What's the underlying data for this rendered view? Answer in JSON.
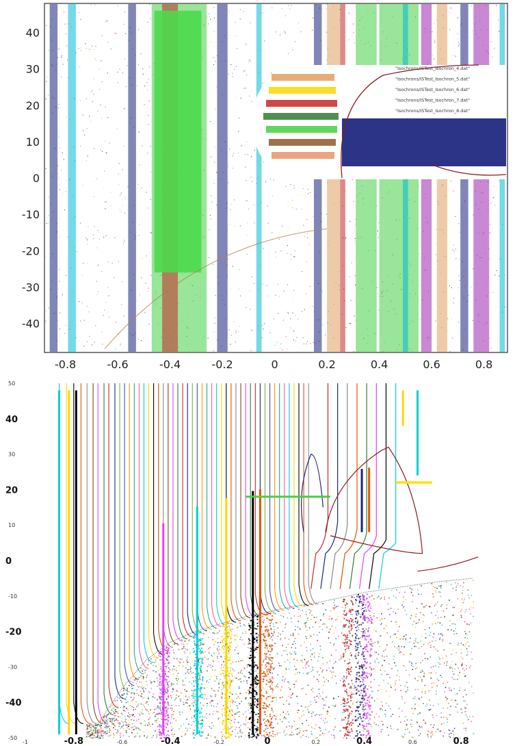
{
  "chart_data": [
    {
      "type": "scatter",
      "title": "",
      "xlabel": "",
      "ylabel": "",
      "xlim": [
        -0.88,
        0.89
      ],
      "ylim": [
        -48,
        48
      ],
      "grid": false,
      "legend_placement": "top-right",
      "x_ticks": [
        "-0.8",
        "-0.6",
        "-0.4",
        "-0.2",
        "0",
        "0.2",
        "0.4",
        "0.6",
        "0.8"
      ],
      "x_tick_values": [
        -0.8,
        -0.6,
        -0.4,
        -0.2,
        0,
        0.2,
        0.4,
        0.6,
        0.8
      ],
      "y_ticks": [
        "40",
        "30",
        "20",
        "10",
        "0",
        "-10",
        "-20",
        "-30",
        "-40"
      ],
      "y_tick_values": [
        40,
        30,
        20,
        10,
        0,
        -10,
        -20,
        -30,
        -40
      ],
      "legend_entries": [
        "\"Isochrons/ISTest_Isochron_4.dat\"",
        "\"Isochrons/ISTest_Isochron_5.dat\"",
        "\"Isochrons/ISTest_Isochron_6.dat\"",
        "\"Isochrons/ISTest_Isochron_7.dat\"",
        "\"Isochrons/ISTest_Isochron_8.dat\""
      ],
      "colors": [
        "#1a237e",
        "#3aa655",
        "#c62828",
        "#e91e63",
        "#00bcd4",
        "#795548",
        "#ffd600",
        "#2e7d32",
        "#ff8a65",
        "#9c27b0",
        "#222222",
        "#5c6bc0",
        "#e0a060",
        "#45d045"
      ],
      "series": [
        {
          "color": "#1a237e",
          "bands": [
            [
              -0.86,
              -0.83
            ],
            [
              -0.56,
              -0.53
            ],
            [
              -0.22,
              -0.18
            ],
            [
              0.15,
              0.18
            ],
            [
              0.71,
              0.74
            ]
          ]
        },
        {
          "color": "#45d045",
          "bands": [
            [
              -0.47,
              -0.26
            ],
            [
              0.31,
              0.39
            ],
            [
              0.4,
              0.55
            ]
          ]
        },
        {
          "color": "#c62828",
          "bands": [
            [
              -0.43,
              -0.37
            ],
            [
              0.25,
              0.27
            ]
          ]
        },
        {
          "color": "#00bcd4",
          "bands": [
            [
              -0.79,
              -0.76
            ],
            [
              -0.07,
              -0.05
            ],
            [
              0.49,
              0.51
            ],
            [
              0.86,
              0.88
            ]
          ]
        },
        {
          "color": "#e0a060",
          "bands": [
            [
              0.2,
              0.25
            ],
            [
              0.62,
              0.66
            ]
          ]
        },
        {
          "color": "#9c27b0",
          "bands": [
            [
              0.56,
              0.6
            ],
            [
              0.76,
              0.82
            ]
          ]
        }
      ]
    },
    {
      "type": "line",
      "title": "",
      "xlabel": "",
      "ylabel": "",
      "xlim": [
        -1,
        1
      ],
      "ylim": [
        -50,
        50
      ],
      "grid": false,
      "x_ticks_major": [
        "-0.8",
        "-0.4",
        "0",
        "0.4",
        "0.8"
      ],
      "x_ticks_major_values": [
        -0.8,
        -0.4,
        0,
        0.4,
        0.8
      ],
      "x_ticks_minor": [
        "-1",
        "-0.6",
        "-0.2",
        "0.2",
        "0.6"
      ],
      "x_ticks_minor_values": [
        -1,
        -0.6,
        -0.2,
        0.2,
        0.6
      ],
      "y_ticks_major": [
        "40",
        "20",
        "0",
        "-20",
        "-40"
      ],
      "y_ticks_major_values": [
        40,
        20,
        0,
        -20,
        -40
      ],
      "y_ticks_minor": [
        "50",
        "30",
        "10",
        "-10",
        "-30",
        "-50"
      ],
      "y_ticks_minor_values": [
        50,
        30,
        10,
        -10,
        -30,
        -50
      ],
      "colors": [
        "#00d0d0",
        "#ffd600",
        "#000000",
        "#e65100",
        "#888888",
        "#8b4513",
        "#e040fb",
        "#2e7d32",
        "#c62828",
        "#1a237e",
        "#7cb342",
        "#3f51b5",
        "#ff9800",
        "#26a69a",
        "#f06292"
      ],
      "isochron_x": [
        -0.86,
        -0.83,
        -0.8,
        -0.77,
        -0.745,
        -0.72,
        -0.7,
        -0.675,
        -0.655,
        -0.63,
        -0.61,
        -0.59,
        -0.57,
        -0.55,
        -0.53,
        -0.51,
        -0.49,
        -0.47,
        -0.45,
        -0.43,
        -0.41,
        -0.39,
        -0.37,
        -0.35,
        -0.33,
        -0.31,
        -0.29,
        -0.27,
        -0.25,
        -0.23,
        -0.21,
        -0.19,
        -0.17,
        -0.15,
        -0.13,
        -0.11,
        -0.09,
        -0.07,
        -0.05,
        -0.03,
        -0.01,
        0.01,
        0.03,
        0.05,
        0.07,
        0.09,
        0.11,
        0.13,
        0.15,
        0.17
      ],
      "bold_isochrons": [
        {
          "x": -0.86,
          "color": "#00d0d0"
        },
        {
          "x": -0.82,
          "color": "#ffd600"
        },
        {
          "x": -0.79,
          "color": "#000000"
        },
        {
          "x": -0.43,
          "color": "#e040fb"
        },
        {
          "x": -0.29,
          "color": "#00d0d0"
        },
        {
          "x": -0.17,
          "color": "#ffd600"
        },
        {
          "x": -0.06,
          "color": "#000000"
        },
        {
          "x": -0.03,
          "color": "#e65100"
        },
        {
          "x": 0.39,
          "color": "#1a237e"
        },
        {
          "x": 0.42,
          "color": "#e65100"
        }
      ],
      "boundary_curve": [
        [
          -0.7,
          -46
        ],
        [
          -0.6,
          -36
        ],
        [
          -0.5,
          -28
        ],
        [
          -0.4,
          -23
        ],
        [
          -0.3,
          -20
        ],
        [
          -0.2,
          -18
        ],
        [
          -0.1,
          -16
        ],
        [
          0.0,
          -14.5
        ],
        [
          0.1,
          -13
        ],
        [
          0.2,
          -12
        ],
        [
          0.3,
          -10.5
        ],
        [
          0.4,
          -9
        ],
        [
          0.5,
          -8
        ],
        [
          0.6,
          -7
        ],
        [
          0.7,
          -6
        ],
        [
          0.85,
          -5
        ]
      ],
      "green_segment": {
        "x": [
          -0.09,
          0.26
        ],
        "y": 18
      },
      "yellow_segment": {
        "x": [
          0.53,
          0.68
        ],
        "y": 22
      }
    }
  ]
}
